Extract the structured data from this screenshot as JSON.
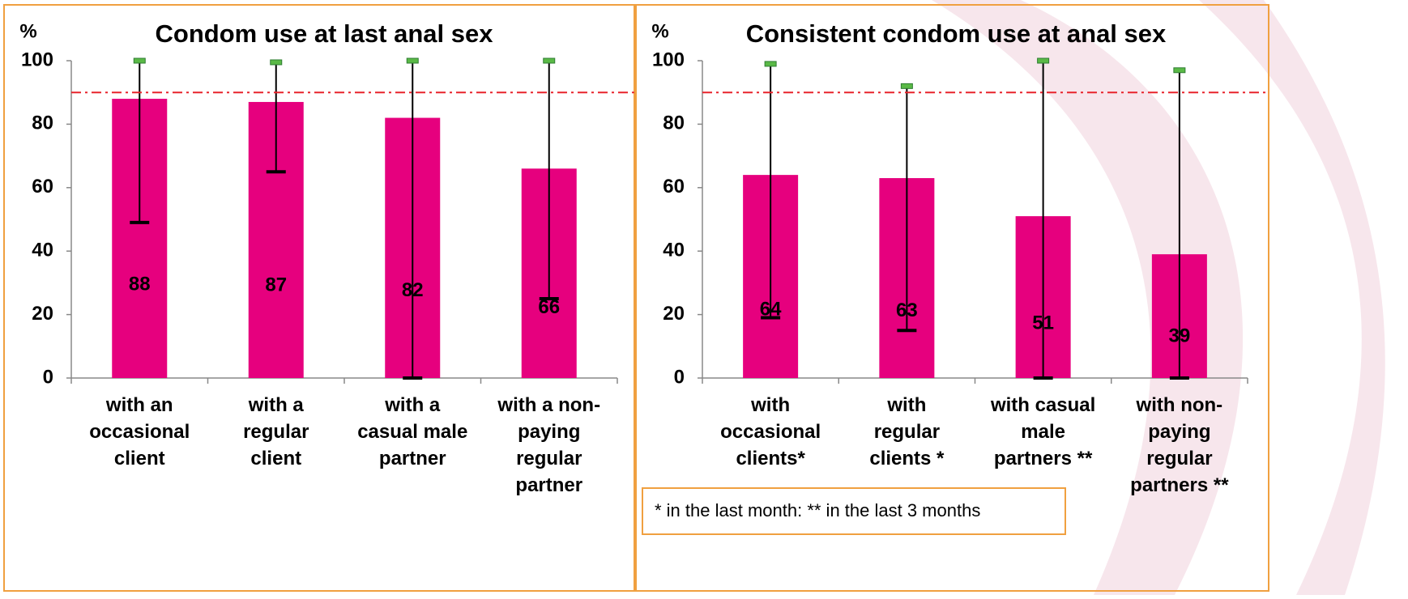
{
  "chart_data": [
    {
      "type": "bar",
      "title": "Condom use at last anal sex",
      "y_label": "%",
      "categories": [
        "with an\noccasional\nclient",
        "with a\nregular\nclient",
        "with a\ncasual male\npartner",
        "with a non-\npaying\nregular\npartner"
      ],
      "values": [
        88,
        87,
        82,
        66
      ],
      "error_low": [
        49,
        65,
        0,
        25
      ],
      "error_high": [
        100,
        99.5,
        100,
        100
      ],
      "color": "#e6007e",
      "reference_line": 90,
      "ylim": [
        0,
        100
      ],
      "yticks": [
        0,
        20,
        40,
        60,
        80,
        100
      ]
    },
    {
      "type": "bar",
      "title": "Consistent condom use at anal sex",
      "y_label": "%",
      "categories": [
        "with\noccasional\nclients*",
        "with\nregular\nclients *",
        "with casual\nmale\npartners **",
        "with non-\npaying\nregular\npartners **"
      ],
      "values": [
        64,
        63,
        51,
        39
      ],
      "error_low": [
        19,
        15,
        0,
        0
      ],
      "error_high": [
        99,
        92,
        100,
        97
      ],
      "color": "#e6007e",
      "reference_line": 90,
      "ylim": [
        0,
        100
      ],
      "yticks": [
        0,
        20,
        40,
        60,
        80,
        100
      ],
      "note": "* in the last month: ** in the last 3 months"
    }
  ]
}
